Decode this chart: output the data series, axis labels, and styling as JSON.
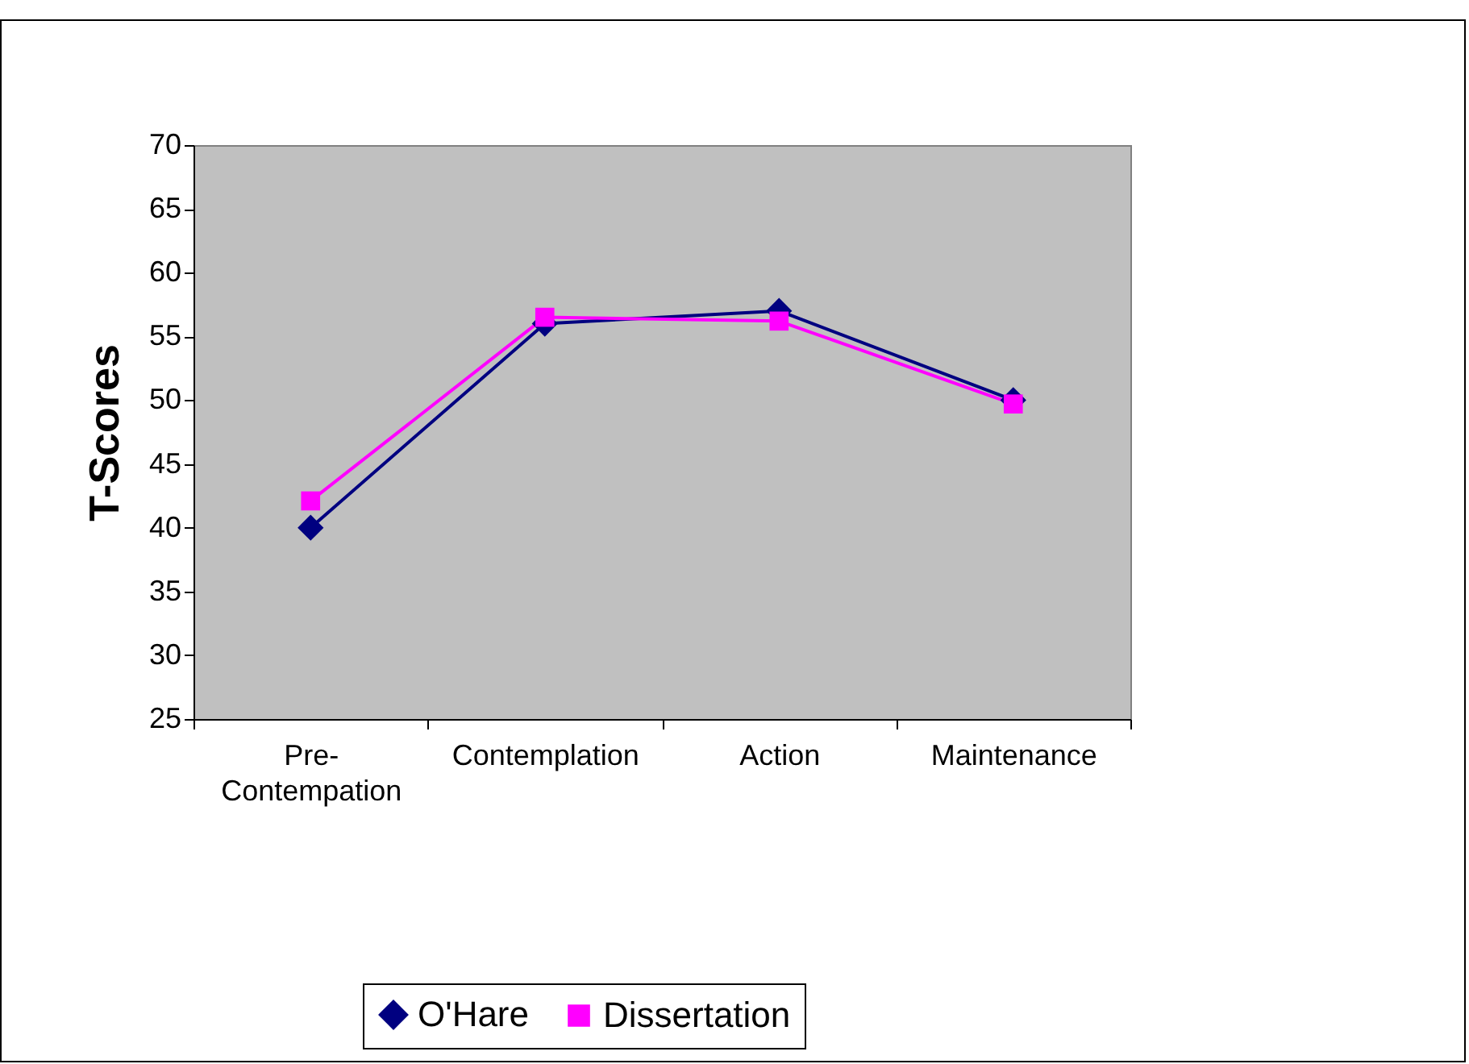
{
  "chart_data": {
    "type": "line",
    "ylabel": "T-Scores",
    "categories": [
      "Pre-Contempation",
      "Contemplation",
      "Action",
      "Maintenance"
    ],
    "series": [
      {
        "name": "O'Hare",
        "color": "#000080",
        "marker": "diamond",
        "values": [
          40,
          56,
          57,
          50
        ]
      },
      {
        "name": "Dissertation",
        "color": "#ff00ff",
        "marker": "square",
        "values": [
          42.1,
          56.5,
          56.2,
          49.7
        ]
      }
    ],
    "ylim": [
      25,
      70
    ],
    "yticks": [
      25,
      30,
      35,
      40,
      45,
      50,
      55,
      60,
      65,
      70
    ],
    "grid": false,
    "legend": "bottom",
    "line_style": "solid"
  }
}
